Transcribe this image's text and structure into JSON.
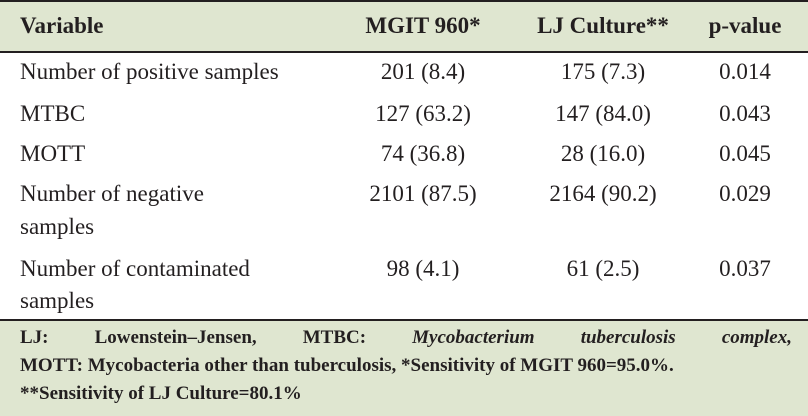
{
  "table": {
    "headers": {
      "variable": "Variable",
      "mgit": "MGIT 960*",
      "lj": "LJ Culture**",
      "p": "p-value"
    },
    "rows": [
      {
        "label": "Number of positive samples",
        "mgit": "201 (8.4)",
        "lj": "175 (7.3)",
        "p": "0.014"
      },
      {
        "label": "MTBC",
        "mgit": "127 (63.2)",
        "lj": "147 (84.0)",
        "p": "0.043"
      },
      {
        "label": "MOTT",
        "mgit": "74 (36.8)",
        "lj": "28 (16.0)",
        "p": "0.045"
      },
      {
        "label_line1": "Number of negative",
        "label_line2": "samples",
        "mgit": "2101 (87.5)",
        "lj": "2164 (90.2)",
        "p": "0.029"
      },
      {
        "label_line1": "Number of contaminated",
        "label_line2": "samples",
        "mgit": "98 (4.1)",
        "lj": "61 (2.5)",
        "p": "0.037"
      }
    ]
  },
  "footnote": {
    "w1": "LJ:",
    "w2": "Lowenstein–Jensen,",
    "w3": "MTBC:",
    "w4": "Mycobacterium",
    "w5": "tuberculosis",
    "w6": "complex,",
    "line2": "MOTT: Mycobacteria other than tuberculosis, *Sensitivity of MGIT 960=95.0%.",
    "line3": "**Sensitivity of LJ Culture=80.1%"
  }
}
